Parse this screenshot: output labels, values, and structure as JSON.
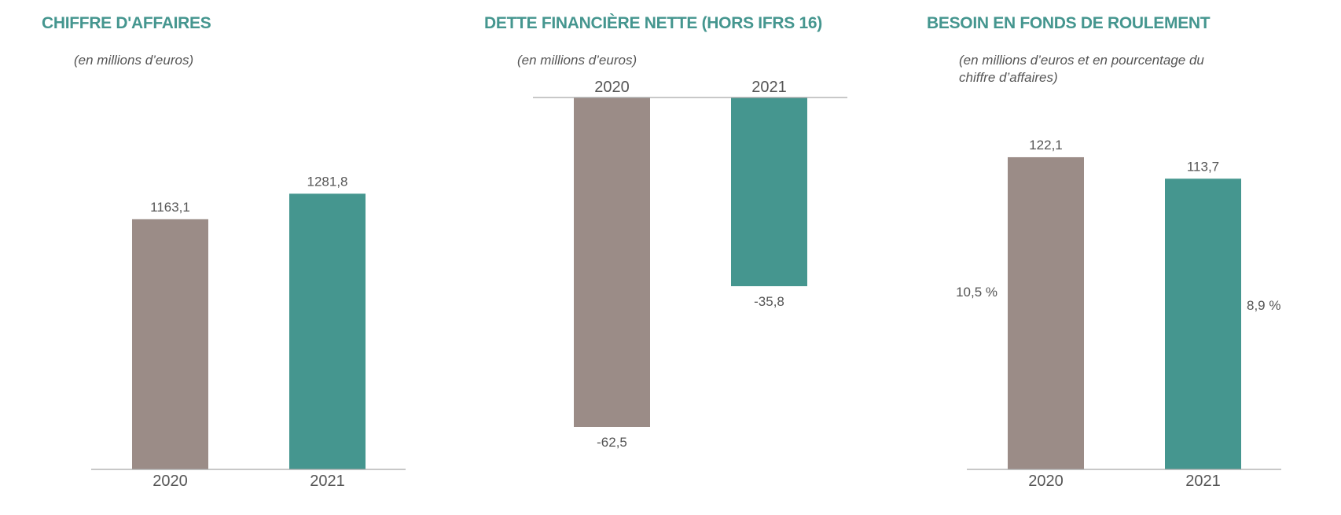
{
  "colors": {
    "accent": "#45968f",
    "grey_bar": "#9b8c87",
    "text": "#555555",
    "axis": "#999999"
  },
  "chart_data": [
    {
      "type": "bar",
      "title": "CHIFFRE D'AFFAIRES",
      "subtitle": "(en millions d’euros)",
      "categories": [
        "2020",
        "2021"
      ],
      "values": [
        1163.1,
        1281.8
      ],
      "value_labels": [
        "1163,1",
        "1281,8"
      ],
      "bar_colors": [
        "#9b8c87",
        "#45968f"
      ],
      "ylim": [
        0,
        1550
      ],
      "xlabel": "",
      "ylabel": "",
      "grid": false
    },
    {
      "type": "bar",
      "title": "DETTE FINANCIÈRE NETTE (HORS IFRS 16)",
      "subtitle": "(en millions d’euros)",
      "categories": [
        "2020",
        "2021"
      ],
      "values": [
        -62.5,
        -35.8
      ],
      "value_labels": [
        "-62,5",
        "-35,8"
      ],
      "bar_colors": [
        "#9b8c87",
        "#45968f"
      ],
      "ylim": [
        -62.5,
        0
      ],
      "xlabel": "",
      "ylabel": "",
      "grid": false
    },
    {
      "type": "bar",
      "title": "BESOIN EN FONDS DE ROULEMENT",
      "subtitle": "(en millions d’euros et en pourcentage du chiffre d’affaires)",
      "categories": [
        "2020",
        "2021"
      ],
      "values": [
        122.1,
        113.7
      ],
      "value_labels": [
        "122,1",
        "113,7"
      ],
      "percent_labels": [
        "10,5 %",
        "8,9 %"
      ],
      "bar_colors": [
        "#9b8c87",
        "#45968f"
      ],
      "ylim": [
        0,
        135
      ],
      "xlabel": "",
      "ylabel": "",
      "grid": false
    }
  ]
}
